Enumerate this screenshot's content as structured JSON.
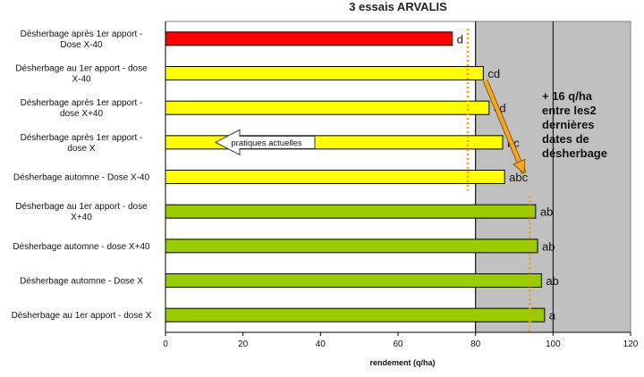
{
  "chart_title": "3 essais ARVALIS",
  "chart_data": {
    "type": "bar",
    "orientation": "horizontal",
    "title": "3 essais ARVALIS",
    "xlabel": "rendement (q/ha)",
    "ylabel": "",
    "xlim": [
      0,
      120
    ],
    "xticks": [
      0,
      20,
      40,
      60,
      80,
      100,
      120
    ],
    "grid": "vertical lines at 80 and 100",
    "categories": [
      "Désherbage après 1er apport - Dose X-40",
      "Désherbage au 1er apport - dose X-40",
      "Désherbage après 1er apport - dose X+40",
      "Désherbage après 1er apport - dose X",
      "Désherbage automne - Dose X-40",
      "Désherbage au 1er apport - dose X+40",
      "Désherbage automne - dose X+40",
      "Désherbage automne - Dose X",
      "Désherbage au 1er apport - dose X"
    ],
    "values": [
      74,
      82,
      83.5,
      87,
      87.5,
      95.5,
      96,
      97,
      97.8
    ],
    "bar_colors": [
      "#ff0000",
      "#ffff00",
      "#ffff00",
      "#ffff00",
      "#ffff00",
      "#99cc00",
      "#99cc00",
      "#99cc00",
      "#99cc00"
    ],
    "group_letters": [
      "d",
      "cd",
      "cd",
      "bc",
      "abc",
      "ab",
      "ab",
      "ab",
      "a"
    ],
    "reference_lines": [
      {
        "x": 78,
        "color": "#ff9900",
        "style": "dotted",
        "span": "rows 1-5"
      },
      {
        "x": 94,
        "color": "#ff9900",
        "style": "dotted",
        "span": "rows 6-9"
      }
    ],
    "shading": {
      "from": 80,
      "to": 120,
      "color": "#c0c0c0"
    },
    "annotations": {
      "left_arrow_text": "pratiques actuelles",
      "callout_lines": [
        "+ 16 q/ha",
        "entre les2",
        "dernières",
        "dates de",
        "désherbage"
      ],
      "colors": {
        "arrow": "#f5a623",
        "plot_bg": "#c0c0c0",
        "bar_edge": "#000000"
      }
    }
  }
}
